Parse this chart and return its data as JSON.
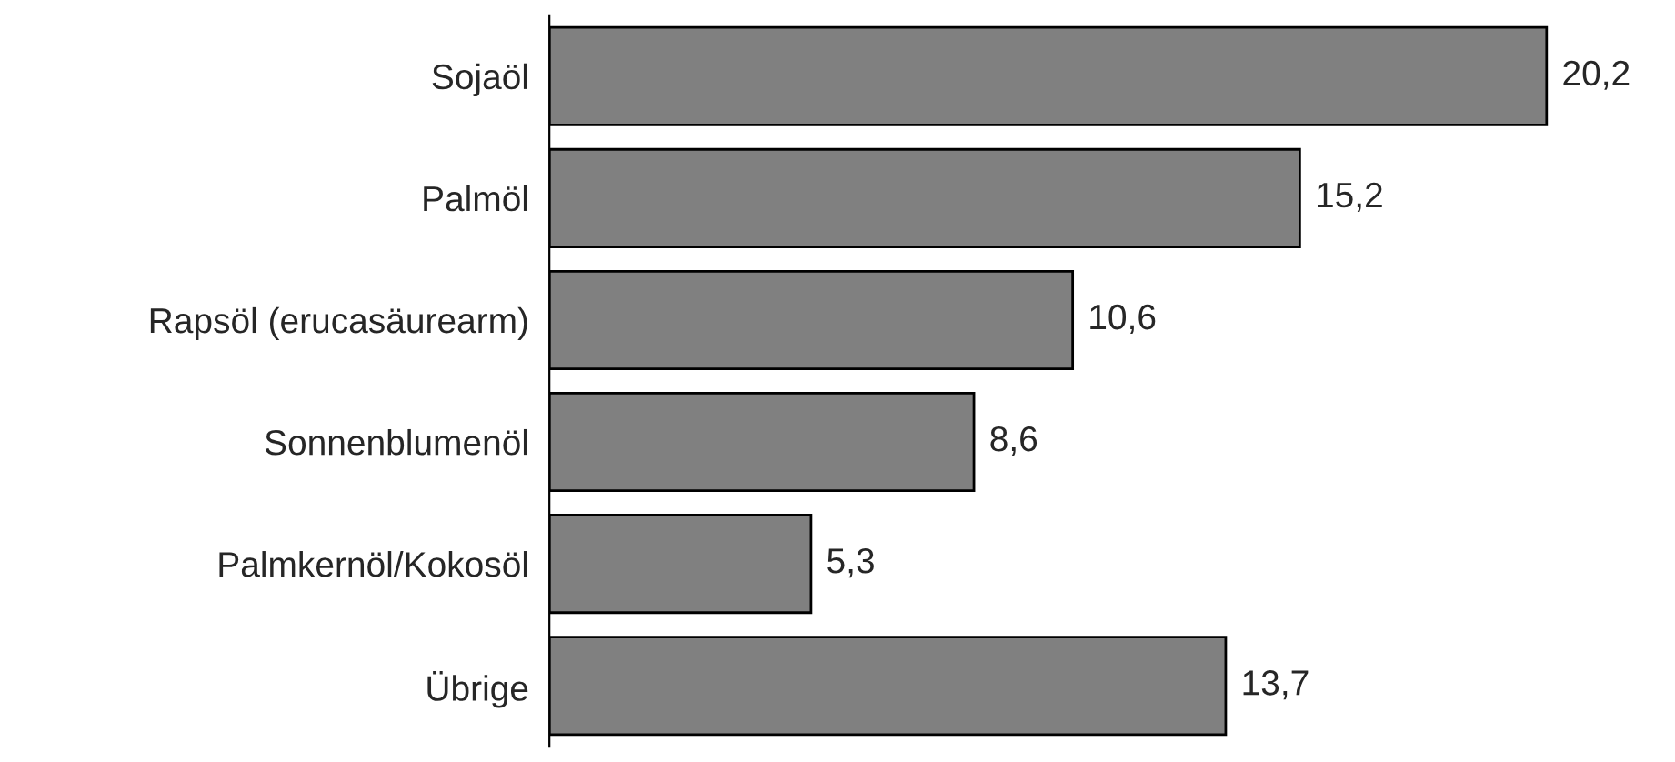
{
  "chart_data": {
    "type": "bar",
    "orientation": "horizontal",
    "categories": [
      "Sojaöl",
      "Palmöl",
      "Rapsöl (erucasäurearm)",
      "Sonnenblumenöl",
      "Palmkernöl/Kokosöl",
      "Übrige"
    ],
    "values": [
      20.2,
      15.2,
      10.6,
      8.6,
      5.3,
      13.7
    ],
    "value_labels": [
      "20,2",
      "15,2",
      "10,6",
      "8,6",
      "5,3",
      "13,7"
    ],
    "color": "#808080",
    "grid": false,
    "legend": false
  }
}
